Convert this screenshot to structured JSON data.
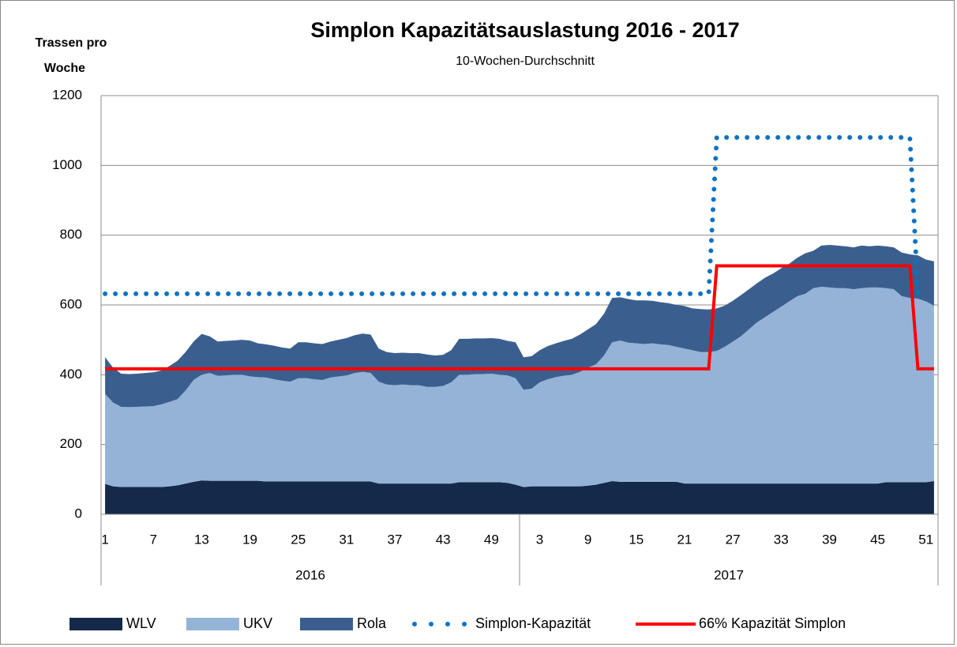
{
  "chart_data": {
    "type": "area",
    "title": "Simplon Kapazitätsauslastung 2016 - 2017",
    "subtitle": "10-Wochen-Durchschnitt",
    "y_label": [
      "Trassen pro",
      "Woche"
    ],
    "category_groups": [
      {
        "name": "2016",
        "categories": [
          "1",
          null,
          null,
          null,
          null,
          null,
          "7",
          null,
          null,
          null,
          null,
          null,
          "13",
          null,
          null,
          null,
          null,
          null,
          "19",
          null,
          null,
          null,
          null,
          null,
          "25",
          null,
          null,
          null,
          null,
          null,
          "31",
          null,
          null,
          null,
          null,
          null,
          "37",
          null,
          null,
          null,
          null,
          null,
          "43",
          null,
          null,
          null,
          null,
          null,
          "49",
          null,
          null,
          null
        ]
      },
      {
        "name": "2017",
        "categories": [
          null,
          null,
          "3",
          null,
          null,
          null,
          null,
          null,
          "9",
          null,
          null,
          null,
          null,
          null,
          "15",
          null,
          null,
          null,
          null,
          null,
          "21",
          null,
          null,
          null,
          null,
          null,
          "27",
          null,
          null,
          null,
          null,
          null,
          "33",
          null,
          null,
          null,
          null,
          null,
          "39",
          null,
          null,
          null,
          null,
          null,
          "45",
          null,
          null,
          null,
          null,
          null,
          "51",
          null
        ]
      }
    ],
    "ylim": [
      0,
      1200
    ],
    "yticks": [
      0,
      200,
      400,
      600,
      800,
      1000,
      1200
    ],
    "grid": true,
    "legend": "bottom",
    "series": [
      {
        "name": "WLV",
        "style": "area",
        "color": "#15294a",
        "values": [
          87,
          80,
          78,
          78,
          78,
          78,
          78,
          78,
          80,
          83,
          88,
          93,
          97,
          96,
          96,
          96,
          96,
          96,
          96,
          96,
          94,
          94,
          94,
          94,
          94,
          94,
          94,
          94,
          94,
          94,
          94,
          94,
          94,
          94,
          88,
          88,
          88,
          88,
          88,
          88,
          88,
          88,
          88,
          88,
          92,
          92,
          92,
          92,
          92,
          92,
          90,
          85,
          78,
          80,
          80,
          80,
          80,
          80,
          80,
          80,
          82,
          85,
          90,
          95,
          93,
          93,
          93,
          93,
          93,
          93,
          93,
          93,
          88,
          88,
          88,
          88,
          88,
          88,
          88,
          88,
          88,
          88,
          88,
          88,
          88,
          88,
          88,
          88,
          88,
          88,
          88,
          88,
          88,
          88,
          88,
          88,
          88,
          92,
          92,
          92,
          92,
          92,
          92,
          95
        ]
      },
      {
        "name": "UKV",
        "style": "area",
        "color": "#95b3d7",
        "values": [
          258,
          240,
          230,
          229,
          230,
          231,
          232,
          237,
          242,
          247,
          267,
          292,
          303,
          309,
          301,
          302,
          304,
          304,
          299,
          297,
          298,
          293,
          289,
          286,
          296,
          296,
          293,
          291,
          298,
          301,
          304,
          311,
          314,
          311,
          292,
          284,
          282,
          284,
          282,
          282,
          277,
          277,
          280,
          290,
          308,
          308,
          310,
          310,
          311,
          308,
          308,
          305,
          279,
          280,
          298,
          307,
          313,
          317,
          320,
          328,
          338,
          345,
          365,
          398,
          405,
          399,
          397,
          395,
          397,
          394,
          392,
          387,
          387,
          382,
          377,
          377,
          380,
          392,
          407,
          422,
          442,
          462,
          477,
          492,
          507,
          522,
          537,
          544,
          560,
          564,
          562,
          560,
          560,
          557,
          560,
          562,
          562,
          556,
          553,
          533,
          528,
          526,
          518,
          503
        ]
      },
      {
        "name": "Rola",
        "style": "area",
        "color": "#3a5f8f",
        "values": [
          105,
          100,
          95,
          95,
          95,
          96,
          97,
          97,
          103,
          110,
          110,
          110,
          117,
          105,
          98,
          99,
          98,
          100,
          103,
          97,
          95,
          96,
          95,
          95,
          103,
          103,
          103,
          103,
          103,
          105,
          107,
          108,
          110,
          110,
          95,
          93,
          92,
          91,
          92,
          92,
          93,
          90,
          89,
          92,
          103,
          103,
          102,
          102,
          102,
          103,
          99,
          103,
          93,
          93,
          92,
          95,
          97,
          100,
          103,
          107,
          110,
          115,
          120,
          127,
          124,
          125,
          123,
          125,
          122,
          121,
          120,
          120,
          122,
          120,
          123,
          122,
          122,
          118,
          117,
          118,
          115,
          112,
          113,
          110,
          110,
          108,
          110,
          116,
          107,
          118,
          122,
          122,
          120,
          120,
          122,
          118,
          120,
          120,
          120,
          125,
          125,
          124,
          120,
          127
        ]
      },
      {
        "name": "Simplon-Kapazität",
        "style": "dotted",
        "color": "#0d72c3",
        "values": [
          632,
          632,
          632,
          632,
          632,
          632,
          632,
          632,
          632,
          632,
          632,
          632,
          632,
          632,
          632,
          632,
          632,
          632,
          632,
          632,
          632,
          632,
          632,
          632,
          632,
          632,
          632,
          632,
          632,
          632,
          632,
          632,
          632,
          632,
          632,
          632,
          632,
          632,
          632,
          632,
          632,
          632,
          632,
          632,
          632,
          632,
          632,
          632,
          632,
          632,
          632,
          632,
          632,
          632,
          632,
          632,
          632,
          632,
          632,
          632,
          632,
          632,
          632,
          632,
          632,
          632,
          632,
          632,
          632,
          632,
          632,
          632,
          632,
          632,
          632,
          632,
          1080,
          1080,
          1080,
          1080,
          1080,
          1080,
          1080,
          1080,
          1080,
          1080,
          1080,
          1080,
          1080,
          1080,
          1080,
          1080,
          1080,
          1080,
          1080,
          1080,
          1080,
          1080,
          1080,
          1080,
          1080,
          632,
          null,
          null
        ]
      },
      {
        "name": "66% Kapazität Simplon",
        "style": "line",
        "color": "#ff0000",
        "values": [
          417,
          417,
          417,
          417,
          417,
          417,
          417,
          417,
          417,
          417,
          417,
          417,
          417,
          417,
          417,
          417,
          417,
          417,
          417,
          417,
          417,
          417,
          417,
          417,
          417,
          417,
          417,
          417,
          417,
          417,
          417,
          417,
          417,
          417,
          417,
          417,
          417,
          417,
          417,
          417,
          417,
          417,
          417,
          417,
          417,
          417,
          417,
          417,
          417,
          417,
          417,
          417,
          417,
          417,
          417,
          417,
          417,
          417,
          417,
          417,
          417,
          417,
          417,
          417,
          417,
          417,
          417,
          417,
          417,
          417,
          417,
          417,
          417,
          417,
          417,
          417,
          712,
          712,
          712,
          712,
          712,
          712,
          712,
          712,
          712,
          712,
          712,
          712,
          712,
          712,
          712,
          712,
          712,
          712,
          712,
          712,
          712,
          712,
          712,
          712,
          712,
          417,
          417,
          417
        ]
      }
    ]
  }
}
